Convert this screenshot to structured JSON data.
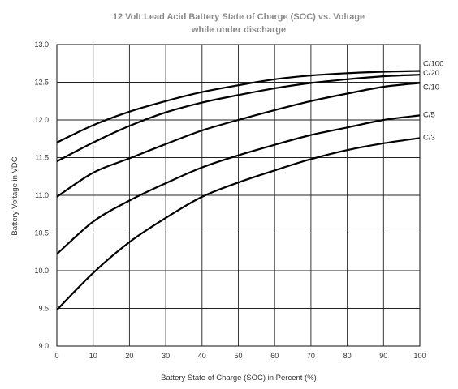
{
  "chart_data": {
    "type": "line",
    "title": "12 Volt Lead Acid Battery State of Charge (SOC) vs. Voltage",
    "subtitle": "while under discharge",
    "xlabel": "Battery State of Charge (SOC) in Percent (%)",
    "ylabel": "Battery Voltage in VDC",
    "xlim": [
      0,
      100
    ],
    "ylim": [
      9.0,
      13.0
    ],
    "x_ticks": [
      "0",
      "10",
      "20",
      "30",
      "40",
      "50",
      "60",
      "70",
      "80",
      "90",
      "100"
    ],
    "y_ticks": [
      "9.0",
      "9.5",
      "10.0",
      "10.5",
      "11.0",
      "11.5",
      "12.0",
      "12.5",
      "13.0"
    ],
    "grid": true,
    "x": [
      0,
      10,
      20,
      30,
      40,
      50,
      60,
      70,
      80,
      90,
      100
    ],
    "series": [
      {
        "name": "C/100",
        "values": [
          11.7,
          11.93,
          12.11,
          12.25,
          12.37,
          12.46,
          12.54,
          12.59,
          12.62,
          12.64,
          12.65
        ]
      },
      {
        "name": "C/20",
        "values": [
          11.45,
          11.7,
          11.92,
          12.1,
          12.23,
          12.33,
          12.42,
          12.49,
          12.54,
          12.58,
          12.6
        ]
      },
      {
        "name": "C/10",
        "values": [
          10.98,
          11.3,
          11.49,
          11.68,
          11.86,
          12.0,
          12.13,
          12.25,
          12.35,
          12.44,
          12.49
        ]
      },
      {
        "name": "C/5",
        "values": [
          10.22,
          10.65,
          10.93,
          11.16,
          11.37,
          11.53,
          11.67,
          11.8,
          11.9,
          12.0,
          12.06
        ]
      },
      {
        "name": "C/3",
        "values": [
          9.48,
          9.97,
          10.38,
          10.7,
          10.98,
          11.17,
          11.33,
          11.48,
          11.6,
          11.69,
          11.76
        ]
      }
    ]
  }
}
